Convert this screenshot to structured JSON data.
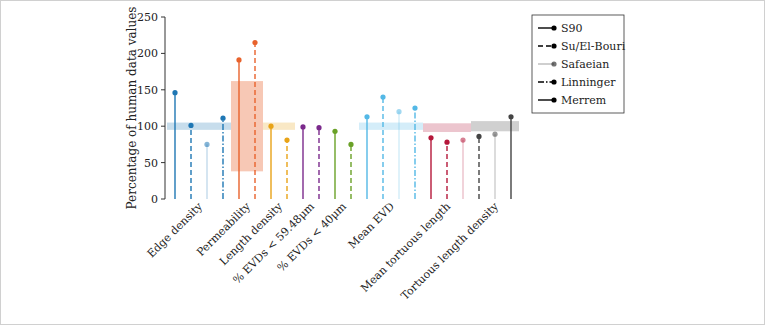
{
  "chart_data": {
    "type": "lollipop",
    "y_label": "Percentage of human data values",
    "categories": [
      "Edge density",
      "Permeability",
      "Length density",
      "% EVDs < 59.48μm",
      "% EVDs < 40μm",
      "Mean EVD",
      "Mean tortuous length",
      "Tortuous length density"
    ],
    "colors": [
      "#1f77b4",
      "#e8622c",
      "#e8a317",
      "#7b2a8c",
      "#6aa127",
      "#53b8e6",
      "#b5173a",
      "#444444"
    ],
    "bands": [
      {
        "low": 95,
        "high": 105
      },
      {
        "low": 38,
        "high": 162
      },
      {
        "low": 95,
        "high": 105
      },
      null,
      null,
      {
        "low": 95,
        "high": 105
      },
      {
        "low": 92,
        "high": 104
      },
      {
        "low": 93,
        "high": 107
      }
    ],
    "series": [
      {
        "name": "S90",
        "color": "#000000",
        "line_style": "solid",
        "marker": "circle",
        "values": [
          146,
          191,
          100,
          99,
          93,
          113,
          84,
          null
        ]
      },
      {
        "name": "Su/El-Bouri",
        "color": "#000000",
        "line_style": "dashed",
        "marker": "circle",
        "values": [
          101,
          215,
          81,
          98,
          75,
          140,
          78,
          86
        ]
      },
      {
        "name": "Safaeian",
        "color": "#000000",
        "line_style": "thin",
        "marker": "circle",
        "values": [
          75,
          null,
          null,
          null,
          null,
          120,
          81,
          89
        ]
      },
      {
        "name": "Linninger",
        "color": "#000000",
        "line_style": "dashdot",
        "marker": "circle",
        "values": [
          111,
          null,
          null,
          null,
          null,
          125,
          null,
          null
        ]
      },
      {
        "name": "Merrem",
        "color": "#000000",
        "line_style": "solid",
        "marker": "circle",
        "values": [
          null,
          null,
          null,
          null,
          null,
          null,
          null,
          113
        ]
      }
    ],
    "ylim": [
      0,
      250
    ],
    "yticks": [
      0,
      50,
      100,
      150,
      200,
      250
    ],
    "legend": "right"
  }
}
